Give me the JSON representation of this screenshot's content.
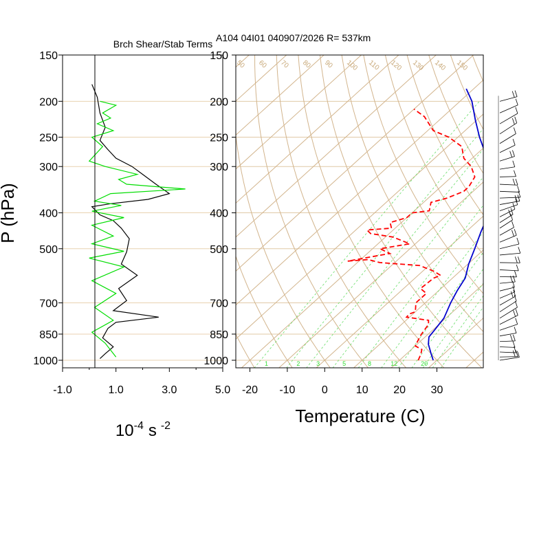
{
  "header": {
    "left_title": "Brch Shear/Stab Terms",
    "right_title": "A104 04I01 040907/2026 R= 537km"
  },
  "chart_data": [
    {
      "type": "line",
      "panel": "brunt-shear-stability",
      "ylabel": "P (hPa)",
      "yscale": "log",
      "y_reversed": true,
      "ylim": [
        1000,
        150
      ],
      "y_ticks": [
        "150",
        "200",
        "250",
        "300",
        "400",
        "500",
        "700",
        "850",
        "1000"
      ],
      "y_tick_values": [
        150,
        200,
        250,
        300,
        400,
        500,
        700,
        850,
        1000
      ],
      "x_ticks": [
        "-1.0",
        "1.0",
        "3.0",
        "5.0"
      ],
      "x_tick_values": [
        -1,
        1,
        3,
        5
      ],
      "xlim": [
        -1,
        5
      ],
      "xlabel_base": "10",
      "xlabel_exp1": "-4",
      "xlabel_unit": "s",
      "xlabel_exp2": "-2",
      "series": [
        {
          "color": "#000000",
          "points": [
            [
              0.1,
              180
            ],
            [
              0.3,
              195
            ],
            [
              0.4,
              215
            ],
            [
              0.6,
              235
            ],
            [
              0.4,
              255
            ],
            [
              0.7,
              270
            ],
            [
              1.0,
              285
            ],
            [
              1.6,
              300
            ],
            [
              2.0,
              315
            ],
            [
              2.5,
              335
            ],
            [
              3.0,
              355
            ],
            [
              2.2,
              368
            ],
            [
              0.8,
              378
            ],
            [
              0.1,
              385
            ],
            [
              0.4,
              405
            ],
            [
              0.9,
              420
            ],
            [
              1.2,
              440
            ],
            [
              1.5,
              470
            ],
            [
              1.4,
              510
            ],
            [
              1.2,
              550
            ],
            [
              1.8,
              590
            ],
            [
              1.1,
              640
            ],
            [
              1.4,
              690
            ],
            [
              0.9,
              735
            ],
            [
              2.6,
              765
            ],
            [
              1.0,
              790
            ],
            [
              0.7,
              820
            ],
            [
              0.5,
              870
            ],
            [
              0.9,
              920
            ],
            [
              0.6,
              960
            ],
            [
              0.4,
              990
            ]
          ]
        },
        {
          "color": "#00dd00",
          "points": [
            [
              0.4,
              200
            ],
            [
              1.0,
              205
            ],
            [
              0.5,
              215
            ],
            [
              0.8,
              222
            ],
            [
              0.3,
              230
            ],
            [
              0.9,
              240
            ],
            [
              0.1,
              250
            ],
            [
              0.5,
              265
            ],
            [
              0.0,
              290
            ],
            [
              0.6,
              300
            ],
            [
              1.8,
              315
            ],
            [
              1.1,
              325
            ],
            [
              1.4,
              335
            ],
            [
              3.6,
              345
            ],
            [
              0.8,
              355
            ],
            [
              0.2,
              372
            ],
            [
              1.2,
              382
            ],
            [
              0.1,
              396
            ],
            [
              1.3,
              412
            ],
            [
              0.1,
              432
            ],
            [
              0.9,
              462
            ],
            [
              0.1,
              485
            ],
            [
              1.3,
              508
            ],
            [
              0.0,
              530
            ],
            [
              1.3,
              560
            ],
            [
              0.1,
              610
            ],
            [
              1.0,
              660
            ],
            [
              0.2,
              720
            ],
            [
              0.9,
              780
            ],
            [
              0.1,
              840
            ],
            [
              0.6,
              900
            ],
            [
              1.0,
              980
            ]
          ]
        }
      ]
    },
    {
      "type": "line",
      "panel": "skew-t",
      "xlabel": "Temperature (C)",
      "x_ticks": [
        "-20",
        "-10",
        "0",
        "10",
        "20",
        "30"
      ],
      "x_tick_values": [
        -20,
        -10,
        0,
        10,
        20,
        30
      ],
      "xlim_at_1000hPa": [
        -23.3,
        43
      ],
      "ylim": [
        1000,
        150
      ],
      "y_ticks": [
        "150",
        "200",
        "250",
        "300",
        "400",
        "500",
        "700",
        "850",
        "1000"
      ],
      "y_tick_values": [
        150,
        200,
        250,
        300,
        400,
        500,
        700,
        850,
        1000
      ],
      "isotherm_color": "#d2b48c",
      "mixing_ratio_color": "#66dd66",
      "mixing_ratio_top_labels": [
        "12",
        "16",
        "20",
        "24",
        "28",
        "32"
      ],
      "mixing_ratio_bottom_labels": [
        "1",
        "2",
        "3",
        "5",
        "8",
        "12",
        "20"
      ],
      "theta_labels": [
        "50",
        "60",
        "70",
        "80",
        "90",
        "100",
        "110",
        "120",
        "130",
        "140",
        "150"
      ],
      "series": [
        {
          "color": "#0000cc",
          "style": "solid",
          "points": [
            [
              29.0,
              1000
            ],
            [
              26.5,
              960
            ],
            [
              23.0,
              905
            ],
            [
              21.0,
              865
            ],
            [
              20.5,
              830
            ],
            [
              19.5,
              770
            ],
            [
              18.0,
              730
            ],
            [
              16.8,
              700
            ],
            [
              15.0,
              650
            ],
            [
              13.4,
              600
            ],
            [
              10.2,
              550
            ],
            [
              7.3,
              500
            ],
            [
              4.0,
              450
            ],
            [
              0.6,
              400
            ],
            [
              -2.5,
              365
            ],
            [
              -6.0,
              340
            ],
            [
              -8.5,
              320
            ],
            [
              -12.4,
              300
            ],
            [
              -18.2,
              275
            ],
            [
              -24.2,
              250
            ],
            [
              -30.3,
              225
            ],
            [
              -36.8,
              200
            ],
            [
              -42.0,
              185
            ]
          ]
        },
        {
          "color": "#ff0000",
          "style": "dashed",
          "points": [
            [
              25.0,
              1000
            ],
            [
              24.0,
              965
            ],
            [
              22.8,
              935
            ],
            [
              20.0,
              915
            ],
            [
              19.0,
              880
            ],
            [
              18.2,
              850
            ],
            [
              17.2,
              800
            ],
            [
              16.0,
              780
            ],
            [
              9.2,
              765
            ],
            [
              9.0,
              750
            ],
            [
              10.0,
              740
            ],
            [
              7.5,
              700
            ],
            [
              7.5,
              660
            ],
            [
              4.5,
              640
            ],
            [
              5.0,
              600
            ],
            [
              6.0,
              590
            ],
            [
              3.0,
              575
            ],
            [
              -2.5,
              555
            ],
            [
              -14.0,
              545
            ],
            [
              -18.0,
              535
            ],
            [
              -23.0,
              540
            ],
            [
              -14.0,
              515
            ],
            [
              -18.0,
              500
            ],
            [
              -11.5,
              485
            ],
            [
              -18.0,
              465
            ],
            [
              -25.0,
              455
            ],
            [
              -27.0,
              445
            ],
            [
              -21.0,
              440
            ],
            [
              -23.0,
              425
            ],
            [
              -20.0,
              412
            ],
            [
              -20.0,
              400
            ],
            [
              -16.0,
              395
            ],
            [
              -17.0,
              385
            ],
            [
              -18.0,
              375
            ],
            [
              -15.0,
              365
            ],
            [
              -12.5,
              350
            ],
            [
              -12.5,
              340
            ],
            [
              -13.8,
              320
            ],
            [
              -17.8,
              300
            ],
            [
              -22.2,
              285
            ],
            [
              -26.2,
              265
            ],
            [
              -32.4,
              250
            ],
            [
              -38.5,
              240
            ],
            [
              -45.0,
              220
            ],
            [
              -50.0,
              210
            ]
          ]
        }
      ]
    },
    {
      "type": "wind_barbs",
      "panel": "wind-profile",
      "color": "#000000",
      "levels_hPa": [
        200,
        215,
        230,
        245,
        260,
        275,
        290,
        305,
        320,
        335,
        350,
        365,
        380,
        395,
        410,
        425,
        440,
        460,
        480,
        500,
        520,
        545,
        570,
        595,
        620,
        650,
        680,
        710,
        740,
        770,
        800,
        830,
        860,
        890,
        920,
        950,
        980,
        1000
      ]
    }
  ]
}
